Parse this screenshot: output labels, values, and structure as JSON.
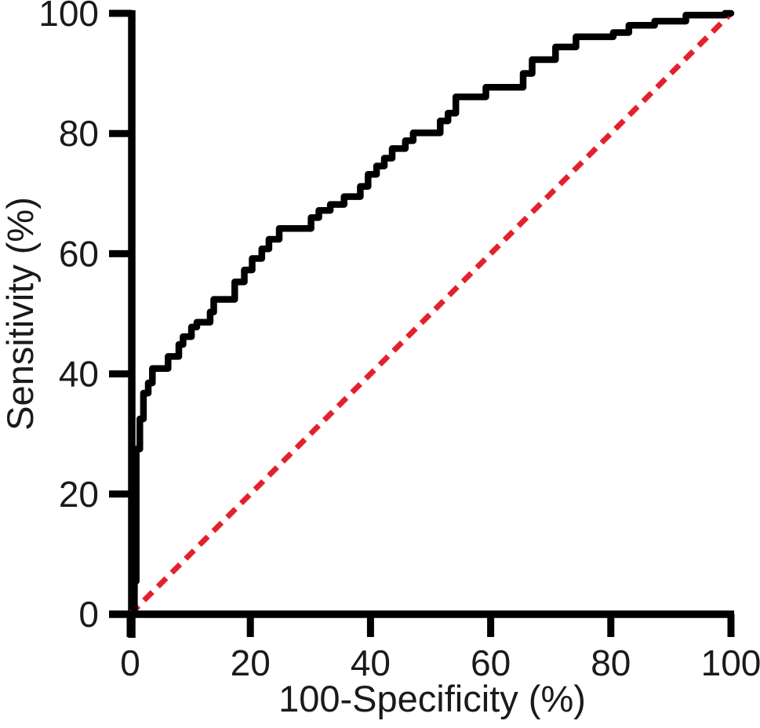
{
  "figure": {
    "background": "#ffffff",
    "text_color": "#1a1a1a",
    "axis_color": "#000000"
  },
  "chart_data": {
    "type": "line",
    "subtype": "roc-step-plot",
    "title": "",
    "xlabel": "100-Specificity (%)",
    "ylabel": "Sensitivity (%)",
    "xlim": [
      0,
      100
    ],
    "ylim": [
      0,
      100
    ],
    "xticks": [
      0,
      20,
      40,
      60,
      80,
      100
    ],
    "yticks": [
      0,
      20,
      40,
      60,
      80,
      100
    ],
    "grid": false,
    "legend": "none",
    "series": [
      {
        "name": "roc-curve",
        "type": "step",
        "color": "#000000",
        "points": [
          [
            0,
            0
          ],
          [
            0.7,
            0
          ],
          [
            0.7,
            5.5
          ],
          [
            1,
            5.5
          ],
          [
            1,
            27.5
          ],
          [
            1.6,
            27.5
          ],
          [
            1.6,
            32.5
          ],
          [
            2.2,
            32.5
          ],
          [
            2.2,
            36.8
          ],
          [
            3,
            36.8
          ],
          [
            3,
            38.5
          ],
          [
            3.7,
            38.5
          ],
          [
            3.7,
            40.9
          ],
          [
            6.3,
            40.9
          ],
          [
            6.3,
            42.9
          ],
          [
            8.1,
            42.9
          ],
          [
            8.1,
            44.9
          ],
          [
            8.8,
            44.9
          ],
          [
            8.8,
            46.2
          ],
          [
            10.2,
            46.2
          ],
          [
            10.2,
            47.8
          ],
          [
            11.1,
            47.8
          ],
          [
            11.1,
            48.6
          ],
          [
            13.3,
            48.6
          ],
          [
            13.3,
            50.3
          ],
          [
            13.9,
            50.3
          ],
          [
            13.9,
            52.4
          ],
          [
            17.4,
            52.4
          ],
          [
            17.4,
            55.3
          ],
          [
            19,
            55.3
          ],
          [
            19,
            57.3
          ],
          [
            20.3,
            57.3
          ],
          [
            20.3,
            59.2
          ],
          [
            21.9,
            59.2
          ],
          [
            21.9,
            60.8
          ],
          [
            23.1,
            60.8
          ],
          [
            23.1,
            62.4
          ],
          [
            24.8,
            62.4
          ],
          [
            24.8,
            64.2
          ],
          [
            30.1,
            64.2
          ],
          [
            30.1,
            66
          ],
          [
            31.4,
            66
          ],
          [
            31.4,
            67.2
          ],
          [
            33.3,
            67.2
          ],
          [
            33.3,
            68.2
          ],
          [
            35.6,
            68.2
          ],
          [
            35.6,
            69.5
          ],
          [
            38.3,
            69.5
          ],
          [
            38.3,
            71.2
          ],
          [
            39.6,
            71.2
          ],
          [
            39.6,
            73.2
          ],
          [
            41,
            73.2
          ],
          [
            41,
            74.6
          ],
          [
            42.3,
            74.6
          ],
          [
            42.3,
            75.9
          ],
          [
            43.6,
            75.9
          ],
          [
            43.6,
            77.5
          ],
          [
            45.8,
            77.5
          ],
          [
            45.8,
            78.8
          ],
          [
            47.1,
            78.8
          ],
          [
            47.1,
            80.1
          ],
          [
            51.6,
            80.1
          ],
          [
            51.6,
            82.1
          ],
          [
            52.9,
            82.1
          ],
          [
            52.9,
            83.4
          ],
          [
            54.2,
            83.4
          ],
          [
            54.2,
            86.1
          ],
          [
            59.2,
            86.1
          ],
          [
            59.2,
            87.7
          ],
          [
            65.4,
            87.7
          ],
          [
            65.4,
            90
          ],
          [
            66.9,
            90
          ],
          [
            66.9,
            92.3
          ],
          [
            70.8,
            92.3
          ],
          [
            70.8,
            94.4
          ],
          [
            74.2,
            94.4
          ],
          [
            74.2,
            96.1
          ],
          [
            80.4,
            96.1
          ],
          [
            80.4,
            96.8
          ],
          [
            83,
            96.8
          ],
          [
            83,
            98
          ],
          [
            87.3,
            98
          ],
          [
            87.3,
            98.7
          ],
          [
            92.5,
            98.7
          ],
          [
            92.5,
            99.7
          ],
          [
            99,
            99.7
          ],
          [
            99,
            100
          ],
          [
            100,
            100
          ]
        ]
      },
      {
        "name": "chance-diagonal",
        "type": "dashed",
        "color": "#e4202c",
        "points": [
          [
            0,
            0
          ],
          [
            100,
            100
          ]
        ]
      }
    ]
  }
}
